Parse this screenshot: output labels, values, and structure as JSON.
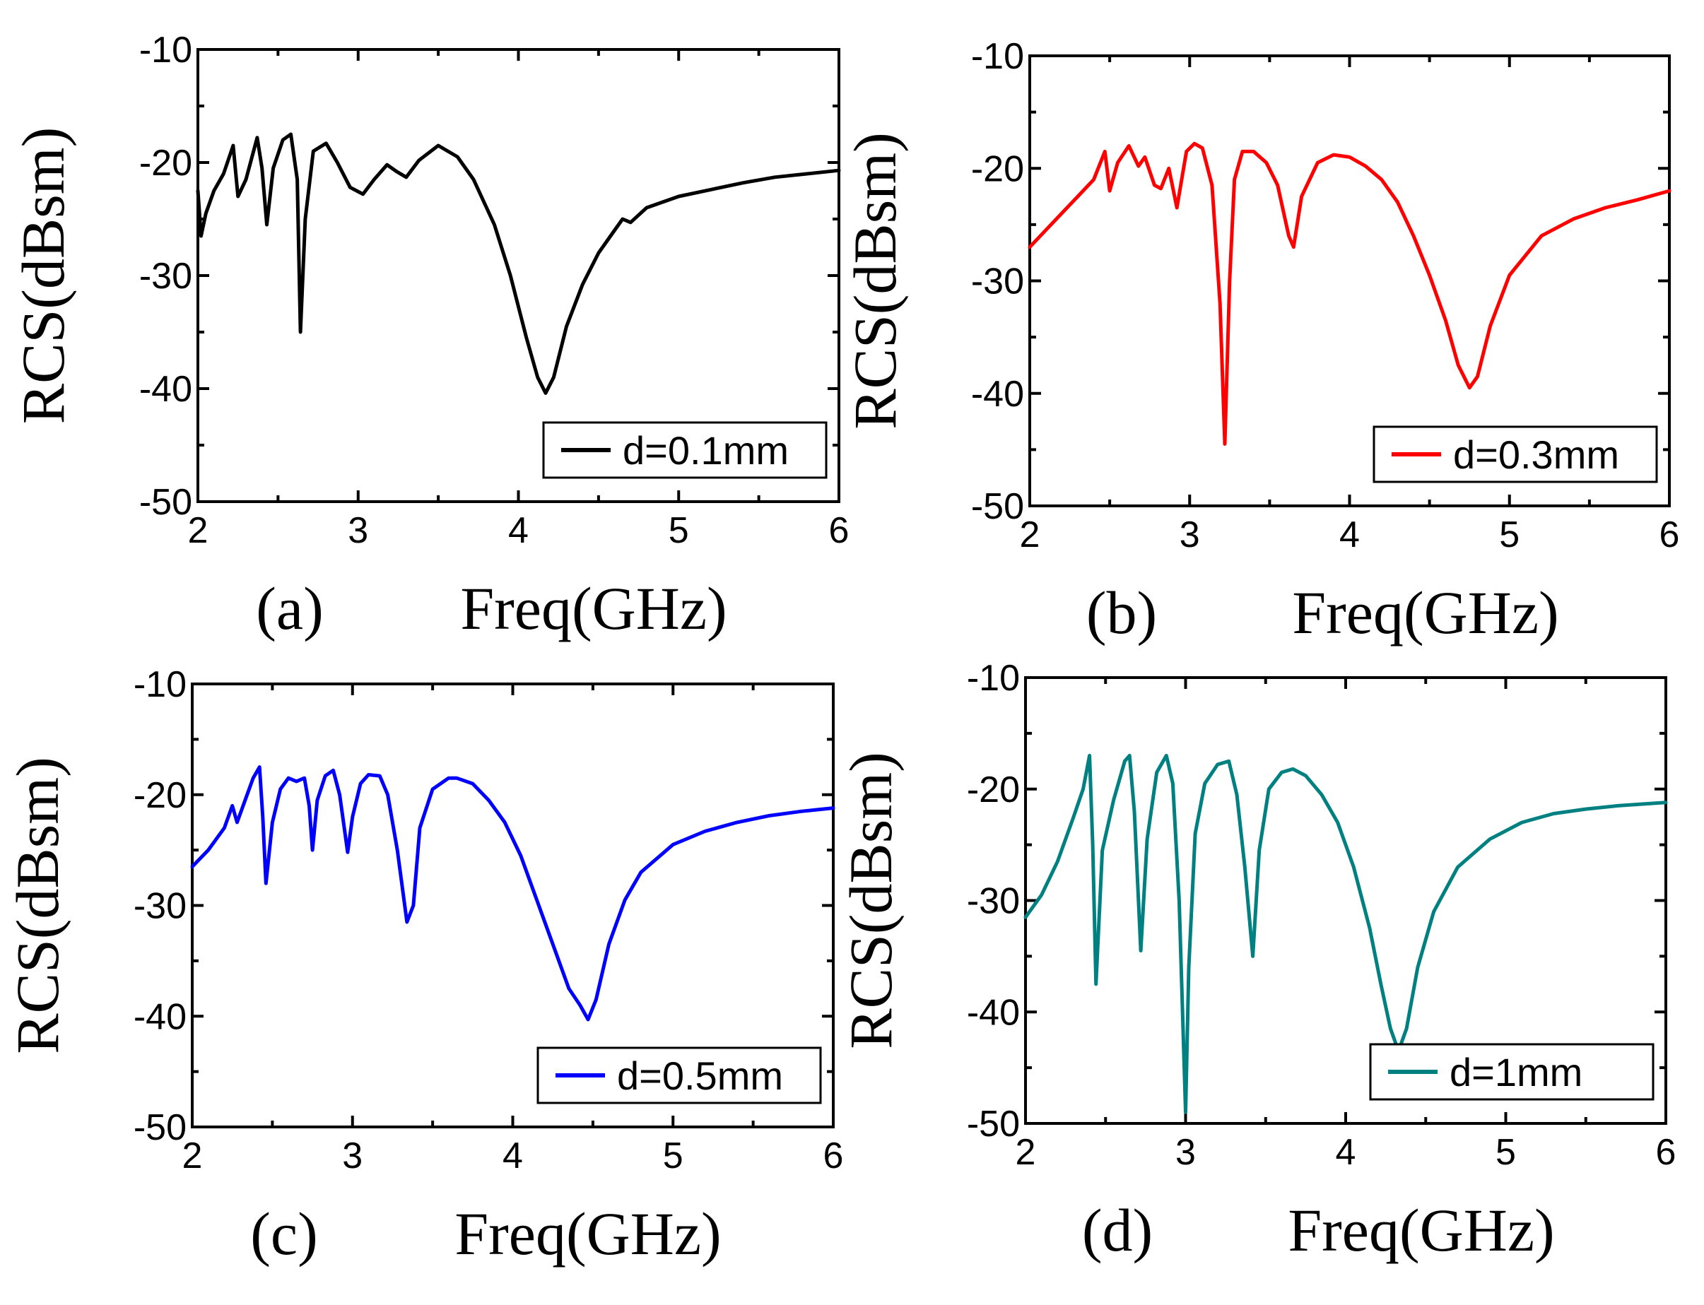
{
  "chart_data": [
    {
      "type": "line",
      "panel": "(a)",
      "xlabel": "Freq(GHz)",
      "ylabel": "RCS(dBsm)",
      "xlim": [
        2,
        6
      ],
      "ylim": [
        -50,
        -10
      ],
      "xticks": [
        "2",
        "3",
        "4",
        "5",
        "6"
      ],
      "yticks": [
        "-10",
        "-20",
        "-30",
        "-40",
        "-50"
      ],
      "legend": "d=0.1mm",
      "legend_position": "bottom-right",
      "color": "#000000",
      "series": [
        {
          "name": "d=0.1mm",
          "x": [
            2.0,
            2.02,
            2.05,
            2.1,
            2.16,
            2.22,
            2.25,
            2.3,
            2.37,
            2.4,
            2.43,
            2.47,
            2.53,
            2.58,
            2.62,
            2.64,
            2.67,
            2.72,
            2.8,
            2.87,
            2.95,
            3.03,
            3.1,
            3.18,
            3.24,
            3.3,
            3.38,
            3.5,
            3.62,
            3.72,
            3.85,
            3.95,
            4.05,
            4.12,
            4.17,
            4.22,
            4.3,
            4.4,
            4.5,
            4.6,
            4.65,
            4.7,
            4.8,
            5.0,
            5.2,
            5.4,
            5.6,
            5.8,
            6.0
          ],
          "y": [
            -22.5,
            -26.5,
            -24.5,
            -22.5,
            -21.0,
            -18.5,
            -23.0,
            -21.5,
            -17.8,
            -20.5,
            -25.5,
            -20.5,
            -18.0,
            -17.5,
            -21.5,
            -35.0,
            -25.0,
            -19.0,
            -18.3,
            -20.0,
            -22.2,
            -22.8,
            -21.5,
            -20.2,
            -20.8,
            -21.3,
            -19.8,
            -18.5,
            -19.5,
            -21.5,
            -25.5,
            -30.0,
            -35.5,
            -39.0,
            -40.4,
            -39.0,
            -34.5,
            -30.8,
            -28.0,
            -26.0,
            -25.0,
            -25.3,
            -24.0,
            -23.0,
            -22.4,
            -21.8,
            -21.3,
            -21.0,
            -20.7
          ]
        }
      ]
    },
    {
      "type": "line",
      "panel": "(b)",
      "xlabel": "Freq(GHz)",
      "ylabel": "RCS(dBsm)",
      "xlim": [
        2,
        6
      ],
      "ylim": [
        -50,
        -10
      ],
      "xticks": [
        "2",
        "3",
        "4",
        "5",
        "6"
      ],
      "yticks": [
        "-10",
        "-20",
        "-30",
        "-40",
        "-50"
      ],
      "legend": "d=0.3mm",
      "legend_position": "bottom-right",
      "color": "#ff0000",
      "series": [
        {
          "name": "d=0.3mm",
          "x": [
            2.0,
            2.1,
            2.2,
            2.3,
            2.4,
            2.47,
            2.5,
            2.55,
            2.62,
            2.68,
            2.72,
            2.78,
            2.82,
            2.87,
            2.92,
            2.98,
            3.03,
            3.08,
            3.14,
            3.19,
            3.22,
            3.25,
            3.28,
            3.33,
            3.4,
            3.48,
            3.55,
            3.62,
            3.65,
            3.7,
            3.8,
            3.9,
            4.0,
            4.1,
            4.2,
            4.3,
            4.4,
            4.5,
            4.6,
            4.68,
            4.75,
            4.8,
            4.88,
            5.0,
            5.2,
            5.4,
            5.6,
            5.8,
            6.0
          ],
          "y": [
            -27.0,
            -25.5,
            -24.0,
            -22.5,
            -21.0,
            -18.5,
            -22.0,
            -19.5,
            -18.0,
            -19.8,
            -19.0,
            -21.5,
            -21.8,
            -20.0,
            -23.5,
            -18.5,
            -17.8,
            -18.2,
            -21.5,
            -32.0,
            -44.5,
            -30.0,
            -21.0,
            -18.5,
            -18.5,
            -19.5,
            -21.5,
            -26.0,
            -27.0,
            -22.5,
            -19.5,
            -18.8,
            -19.0,
            -19.8,
            -21.0,
            -23.0,
            -26.0,
            -29.5,
            -33.5,
            -37.5,
            -39.5,
            -38.5,
            -34.0,
            -29.5,
            -26.0,
            -24.5,
            -23.5,
            -22.8,
            -22.0
          ]
        }
      ]
    },
    {
      "type": "line",
      "panel": "(c)",
      "xlabel": "Freq(GHz)",
      "ylabel": "RCS(dBsm)",
      "xlim": [
        2,
        6
      ],
      "ylim": [
        -50,
        -10
      ],
      "xticks": [
        "2",
        "3",
        "4",
        "5",
        "6"
      ],
      "yticks": [
        "-10",
        "-20",
        "-30",
        "-40",
        "-50"
      ],
      "legend": "d=0.5mm",
      "legend_position": "bottom-right",
      "color": "#0000ff",
      "series": [
        {
          "name": "d=0.5mm",
          "x": [
            2.0,
            2.1,
            2.2,
            2.25,
            2.28,
            2.33,
            2.38,
            2.42,
            2.44,
            2.46,
            2.5,
            2.55,
            2.6,
            2.65,
            2.7,
            2.73,
            2.75,
            2.78,
            2.83,
            2.88,
            2.92,
            2.97,
            3.0,
            3.05,
            3.1,
            3.17,
            3.22,
            3.28,
            3.34,
            3.38,
            3.42,
            3.5,
            3.6,
            3.65,
            3.75,
            3.85,
            3.95,
            4.05,
            4.15,
            4.25,
            4.35,
            4.42,
            4.47,
            4.52,
            4.6,
            4.7,
            4.8,
            5.0,
            5.2,
            5.4,
            5.6,
            5.8,
            6.0
          ],
          "y": [
            -26.5,
            -25.0,
            -23.0,
            -21.0,
            -22.5,
            -20.5,
            -18.5,
            -17.5,
            -22.0,
            -28.0,
            -22.5,
            -19.5,
            -18.5,
            -18.8,
            -18.5,
            -21.0,
            -25.0,
            -20.5,
            -18.3,
            -17.8,
            -20.0,
            -25.2,
            -22.0,
            -19.0,
            -18.2,
            -18.3,
            -20.0,
            -25.0,
            -31.5,
            -30.0,
            -23.0,
            -19.5,
            -18.5,
            -18.5,
            -19.0,
            -20.5,
            -22.5,
            -25.5,
            -29.5,
            -33.5,
            -37.5,
            -39.0,
            -40.3,
            -38.5,
            -33.5,
            -29.5,
            -27.0,
            -24.5,
            -23.3,
            -22.5,
            -21.9,
            -21.5,
            -21.2
          ]
        }
      ]
    },
    {
      "type": "line",
      "panel": "(d)",
      "xlabel": "Freq(GHz)",
      "ylabel": "RCS(dBsm)",
      "xlim": [
        2,
        6
      ],
      "ylim": [
        -50,
        -10
      ],
      "xticks": [
        "2",
        "3",
        "4",
        "5",
        "6"
      ],
      "yticks": [
        "-10",
        "-20",
        "-30",
        "-40",
        "-50"
      ],
      "legend": "d=1mm",
      "legend_position": "bottom-right",
      "color": "#008080",
      "series": [
        {
          "name": "d=1mm",
          "x": [
            2.0,
            2.1,
            2.2,
            2.3,
            2.36,
            2.4,
            2.42,
            2.44,
            2.48,
            2.55,
            2.62,
            2.65,
            2.68,
            2.72,
            2.76,
            2.82,
            2.88,
            2.92,
            2.96,
            3.0,
            3.02,
            3.06,
            3.12,
            3.2,
            3.27,
            3.32,
            3.37,
            3.42,
            3.46,
            3.52,
            3.6,
            3.67,
            3.75,
            3.85,
            3.95,
            4.05,
            4.15,
            4.22,
            4.28,
            4.33,
            4.38,
            4.45,
            4.55,
            4.7,
            4.9,
            5.1,
            5.3,
            5.5,
            5.7,
            6.0
          ],
          "y": [
            -31.5,
            -29.5,
            -26.5,
            -22.5,
            -20.0,
            -17.0,
            -25.0,
            -37.5,
            -25.5,
            -21.0,
            -17.5,
            -17.0,
            -22.0,
            -34.5,
            -24.5,
            -18.5,
            -17.0,
            -19.5,
            -30.0,
            -49.0,
            -36.0,
            -24.0,
            -19.5,
            -17.8,
            -17.5,
            -20.5,
            -27.0,
            -35.0,
            -25.5,
            -20.0,
            -18.5,
            -18.2,
            -18.8,
            -20.5,
            -23.0,
            -27.0,
            -32.5,
            -37.5,
            -41.5,
            -43.5,
            -41.5,
            -36.0,
            -31.0,
            -27.0,
            -24.5,
            -23.0,
            -22.2,
            -21.8,
            -21.5,
            -21.2
          ]
        }
      ]
    }
  ]
}
